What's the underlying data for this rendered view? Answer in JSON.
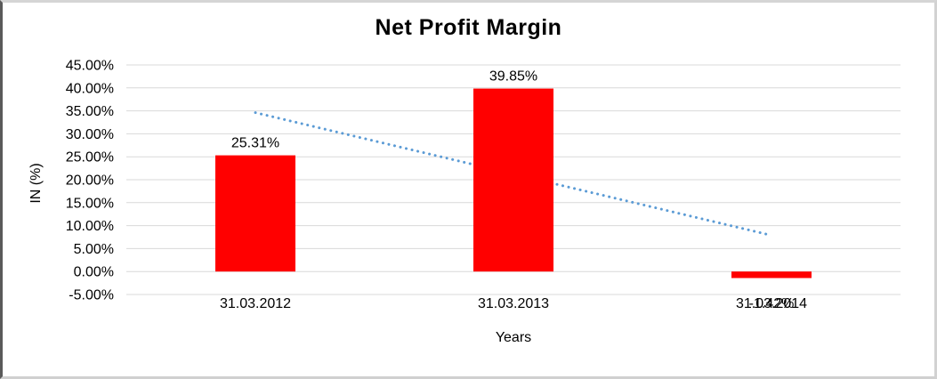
{
  "chart_data": {
    "type": "bar",
    "title": "Net Profit Margin",
    "xlabel": "Years",
    "ylabel": "IN (%)",
    "categories": [
      "31.03.2012",
      "31.03.2013",
      "31.03.2014"
    ],
    "values": [
      25.31,
      39.85,
      -1.42
    ],
    "data_labels": [
      "25.31%",
      "39.85%",
      "-1.42%"
    ],
    "ylim": [
      -5,
      45
    ],
    "ytick_labels": [
      "45.00%",
      "40.00%",
      "35.00%",
      "30.00%",
      "25.00%",
      "20.00%",
      "15.00%",
      "10.00%",
      "5.00%",
      "0.00%",
      "-5.00%"
    ],
    "ytick_values": [
      45,
      40,
      35,
      30,
      25,
      20,
      15,
      10,
      5,
      0,
      -5
    ],
    "grid": true,
    "legend": "none",
    "bar_color": "#ff0000",
    "gridline_color": "#d9d9d9",
    "text_color": "#000000",
    "trendline": {
      "type": "linear",
      "style": "dotted",
      "color": "#5b9bd5",
      "start_value": 34.61,
      "end_value": 7.88
    }
  }
}
